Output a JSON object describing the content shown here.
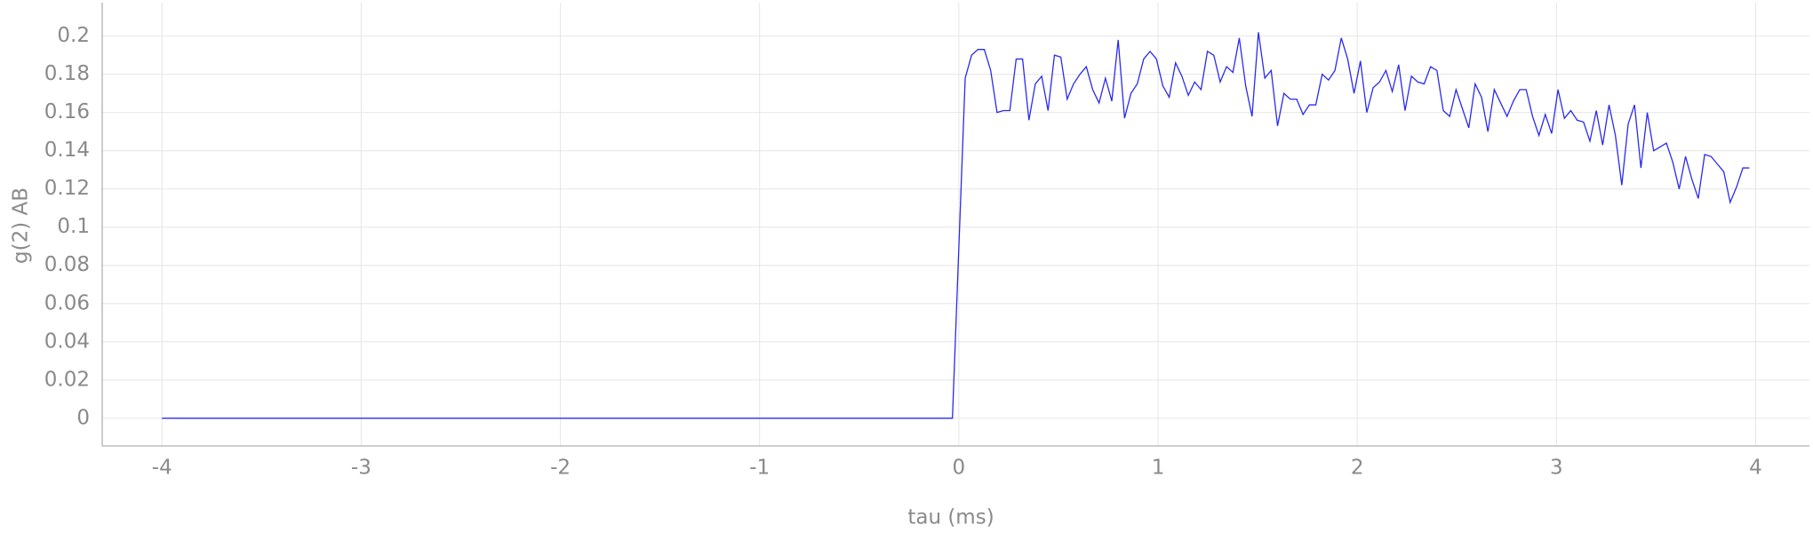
{
  "chart_data": {
    "type": "line",
    "x_label": "tau (ms)",
    "y_label": "g(2) AB",
    "x": [
      -4,
      -0.032,
      0.032,
      0.064,
      0.096,
      0.128,
      0.16,
      0.192,
      0.224,
      0.256,
      0.288,
      0.32,
      0.352,
      0.384,
      0.416,
      0.448,
      0.48,
      0.512,
      0.544,
      0.576,
      0.608,
      0.64,
      0.672,
      0.704,
      0.736,
      0.768,
      0.8,
      0.832,
      0.864,
      0.896,
      0.928,
      0.96,
      0.992,
      1.024,
      1.056,
      1.088,
      1.12,
      1.152,
      1.184,
      1.216,
      1.248,
      1.28,
      1.312,
      1.344,
      1.376,
      1.408,
      1.44,
      1.472,
      1.504,
      1.536,
      1.568,
      1.6,
      1.632,
      1.664,
      1.696,
      1.728,
      1.76,
      1.792,
      1.824,
      1.856,
      1.888,
      1.92,
      1.952,
      1.984,
      2.016,
      2.048,
      2.08,
      2.112,
      2.144,
      2.176,
      2.208,
      2.24,
      2.272,
      2.304,
      2.336,
      2.368,
      2.4,
      2.432,
      2.464,
      2.496,
      2.528,
      2.56,
      2.592,
      2.624,
      2.656,
      2.688,
      2.72,
      2.752,
      2.784,
      2.816,
      2.848,
      2.88,
      2.912,
      2.944,
      2.976,
      3.008,
      3.04,
      3.072,
      3.104,
      3.136,
      3.168,
      3.2,
      3.232,
      3.264,
      3.296,
      3.328,
      3.36,
      3.392,
      3.424,
      3.456,
      3.488,
      3.52,
      3.552,
      3.584,
      3.616,
      3.648,
      3.68,
      3.712,
      3.744,
      3.776,
      3.808,
      3.84,
      3.872,
      3.904,
      3.936,
      3.968
    ],
    "series": [
      {
        "color": "#2a2af0",
        "values": [
          0,
          0,
          0.178,
          0.19,
          0.193,
          0.193,
          0.182,
          0.16,
          0.161,
          0.161,
          0.188,
          0.188,
          0.156,
          0.175,
          0.179,
          0.161,
          0.19,
          0.189,
          0.167,
          0.175,
          0.18,
          0.184,
          0.172,
          0.165,
          0.178,
          0.166,
          0.198,
          0.157,
          0.17,
          0.175,
          0.188,
          0.192,
          0.188,
          0.174,
          0.168,
          0.186,
          0.179,
          0.169,
          0.176,
          0.172,
          0.192,
          0.19,
          0.176,
          0.184,
          0.181,
          0.199,
          0.174,
          0.158,
          0.202,
          0.178,
          0.182,
          0.153,
          0.17,
          0.167,
          0.167,
          0.159,
          0.164,
          0.164,
          0.18,
          0.177,
          0.182,
          0.199,
          0.188,
          0.17,
          0.187,
          0.16,
          0.173,
          0.176,
          0.182,
          0.171,
          0.185,
          0.161,
          0.179,
          0.176,
          0.175,
          0.184,
          0.182,
          0.161,
          0.158,
          0.172,
          0.162,
          0.152,
          0.175,
          0.168,
          0.15,
          0.172,
          0.165,
          0.158,
          0.166,
          0.172,
          0.172,
          0.158,
          0.148,
          0.159,
          0.149,
          0.172,
          0.157,
          0.161,
          0.156,
          0.155,
          0.145,
          0.161,
          0.143,
          0.164,
          0.148,
          0.122,
          0.154,
          0.164,
          0.131,
          0.16,
          0.14,
          0.142,
          0.144,
          0.134,
          0.12,
          0.137,
          0.125,
          0.115,
          0.138,
          0.137,
          0.133,
          0.129,
          0.113,
          0.121,
          0.131,
          0.131
        ]
      }
    ],
    "xlim": [
      -4.3,
      4.27
    ],
    "ylim": [
      -0.0145,
      0.2175
    ],
    "xticks": [
      -4,
      -3,
      -2,
      -1,
      0,
      1,
      2,
      3,
      4
    ],
    "yticks": [
      0,
      0.02,
      0.04,
      0.06,
      0.08,
      0.1,
      0.12,
      0.14,
      0.16,
      0.18,
      0.2
    ],
    "grid": true
  }
}
